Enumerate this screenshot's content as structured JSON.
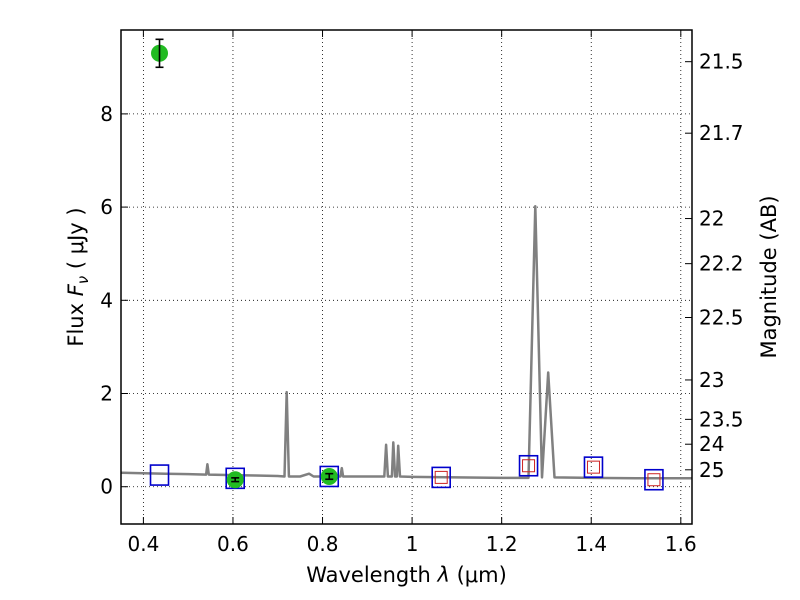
{
  "chart_data": {
    "type": "scatter",
    "title": "",
    "xlabel_prefix": "Wavelength",
    "xlabel_symbol": "λ",
    "xlabel_unit": "(μm)",
    "ylabel_prefix": "Flux",
    "ylabel_symbol": "F",
    "ylabel_subscript": "ν",
    "ylabel_unit": "( μJy )",
    "y2label": "Magnitude (AB)",
    "xlim": [
      0.35,
      1.625
    ],
    "ylim": [
      -0.8,
      9.8
    ],
    "grid": true,
    "x_ticks": [
      {
        "v": 0.4,
        "label": "0.4"
      },
      {
        "v": 0.6,
        "label": "0.6"
      },
      {
        "v": 0.8,
        "label": "0.8"
      },
      {
        "v": 1.0,
        "label": "1"
      },
      {
        "v": 1.2,
        "label": "1.2"
      },
      {
        "v": 1.4,
        "label": "1.4"
      },
      {
        "v": 1.6,
        "label": "1.6"
      }
    ],
    "y_ticks": [
      {
        "v": 0,
        "label": "0"
      },
      {
        "v": 2,
        "label": "2"
      },
      {
        "v": 4,
        "label": "4"
      },
      {
        "v": 6,
        "label": "6"
      },
      {
        "v": 8,
        "label": "8"
      }
    ],
    "mag_ticks": [
      {
        "v": 21.5,
        "label": "21.5"
      },
      {
        "v": 21.7,
        "label": "21.7"
      },
      {
        "v": 22,
        "label": "22"
      },
      {
        "v": 22.2,
        "label": "22.2"
      },
      {
        "v": 22.5,
        "label": "22.5"
      },
      {
        "v": 23,
        "label": "23"
      },
      {
        "v": 23.5,
        "label": "23.5"
      },
      {
        "v": 24,
        "label": "24"
      },
      {
        "v": 25,
        "label": "25"
      }
    ],
    "model_spectrum": {
      "color": "#808080",
      "points": [
        [
          0.35,
          0.3
        ],
        [
          0.4,
          0.29
        ],
        [
          0.45,
          0.28
        ],
        [
          0.5,
          0.27
        ],
        [
          0.54,
          0.26
        ],
        [
          0.543,
          0.48
        ],
        [
          0.546,
          0.26
        ],
        [
          0.6,
          0.25
        ],
        [
          0.65,
          0.24
        ],
        [
          0.7,
          0.23
        ],
        [
          0.715,
          0.22
        ],
        [
          0.72,
          2.03
        ],
        [
          0.725,
          0.22
        ],
        [
          0.75,
          0.22
        ],
        [
          0.77,
          0.28
        ],
        [
          0.78,
          0.22
        ],
        [
          0.8,
          0.22
        ],
        [
          0.84,
          0.22
        ],
        [
          0.843,
          0.4
        ],
        [
          0.846,
          0.22
        ],
        [
          0.9,
          0.22
        ],
        [
          0.938,
          0.22
        ],
        [
          0.942,
          0.9
        ],
        [
          0.946,
          0.22
        ],
        [
          0.955,
          0.22
        ],
        [
          0.958,
          0.95
        ],
        [
          0.962,
          0.22
        ],
        [
          0.966,
          0.22
        ],
        [
          0.969,
          0.88
        ],
        [
          0.973,
          0.22
        ],
        [
          1.0,
          0.21
        ],
        [
          1.1,
          0.2
        ],
        [
          1.2,
          0.19
        ],
        [
          1.26,
          0.19
        ],
        [
          1.275,
          6.02
        ],
        [
          1.29,
          0.2
        ],
        [
          1.304,
          2.45
        ],
        [
          1.318,
          0.2
        ],
        [
          1.4,
          0.19
        ],
        [
          1.5,
          0.18
        ],
        [
          1.625,
          0.18
        ]
      ]
    },
    "observed_points": {
      "color": "#22bb22",
      "points": [
        {
          "x": 0.436,
          "y": 9.3,
          "yerr": 0.3
        },
        {
          "x": 0.605,
          "y": 0.15,
          "yerr": 0.04
        },
        {
          "x": 0.815,
          "y": 0.22,
          "yerr": 0.06
        }
      ]
    },
    "model_photometry_blue": {
      "color": "#0000cc",
      "points": [
        {
          "x": 0.436,
          "y": 0.25
        },
        {
          "x": 0.605,
          "y": 0.18
        },
        {
          "x": 0.815,
          "y": 0.22
        },
        {
          "x": 1.065,
          "y": 0.2
        },
        {
          "x": 1.26,
          "y": 0.45
        },
        {
          "x": 1.405,
          "y": 0.42
        },
        {
          "x": 1.54,
          "y": 0.15
        }
      ]
    },
    "model_photometry_red": {
      "color": "#cc2222",
      "points": [
        {
          "x": 1.065,
          "y": 0.2
        },
        {
          "x": 1.26,
          "y": 0.45
        },
        {
          "x": 1.405,
          "y": 0.42
        },
        {
          "x": 1.54,
          "y": 0.15
        }
      ]
    }
  }
}
